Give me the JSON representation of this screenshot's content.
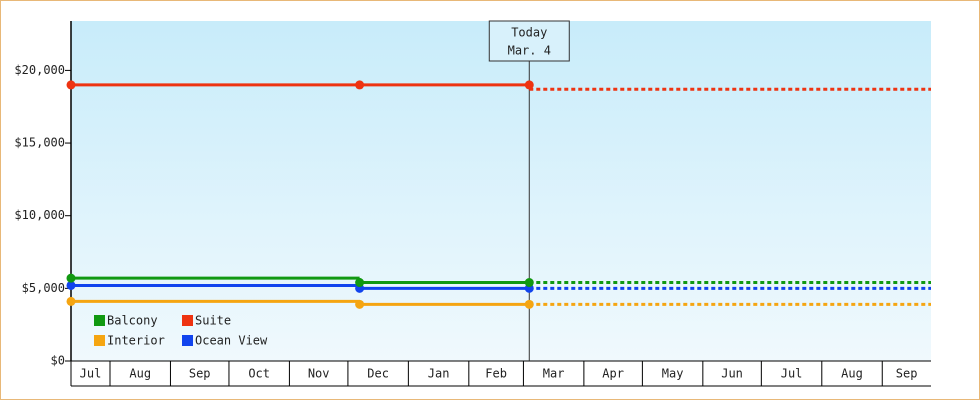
{
  "chart_data": {
    "type": "line",
    "annotation": [
      "Today",
      "Mar. 4"
    ],
    "today_x": 235,
    "xlim": [
      0,
      441
    ],
    "xticks": [
      {
        "value": 0,
        "label": "Jul"
      },
      {
        "value": 20,
        "label": "Aug"
      },
      {
        "value": 51,
        "label": "Sep"
      },
      {
        "value": 81,
        "label": "Oct"
      },
      {
        "value": 112,
        "label": "Nov"
      },
      {
        "value": 142,
        "label": "Dec"
      },
      {
        "value": 173,
        "label": "Jan"
      },
      {
        "value": 204,
        "label": "Feb"
      },
      {
        "value": 232,
        "label": "Mar"
      },
      {
        "value": 263,
        "label": "Apr"
      },
      {
        "value": 293,
        "label": "May"
      },
      {
        "value": 324,
        "label": "Jun"
      },
      {
        "value": 354,
        "label": "Jul"
      },
      {
        "value": 385,
        "label": "Aug"
      },
      {
        "value": 416,
        "label": "Sep"
      }
    ],
    "ylim": [
      0,
      23400
    ],
    "yticks": [
      {
        "value": 0,
        "label": "$0"
      },
      {
        "value": 5000,
        "label": "$5,000"
      },
      {
        "value": 10000,
        "label": "$10,000"
      },
      {
        "value": 15000,
        "label": "$15,000"
      },
      {
        "value": 20000,
        "label": "$20,000"
      }
    ],
    "x": [
      0,
      148,
      235
    ],
    "series": [
      {
        "name": "Balcony",
        "color": "#119911",
        "values": [
          5700,
          5400,
          5400
        ],
        "forecast": 5400
      },
      {
        "name": "Suite",
        "color": "#ee3311",
        "values": [
          19000,
          19000,
          19000
        ],
        "forecast": 18700
      },
      {
        "name": "Interior",
        "color": "#f5a511",
        "values": [
          4100,
          3900,
          3900
        ],
        "forecast": 3900
      },
      {
        "name": "Ocean View",
        "color": "#1144ee",
        "values": [
          5200,
          5000,
          5000
        ],
        "forecast": 5000
      }
    ]
  }
}
